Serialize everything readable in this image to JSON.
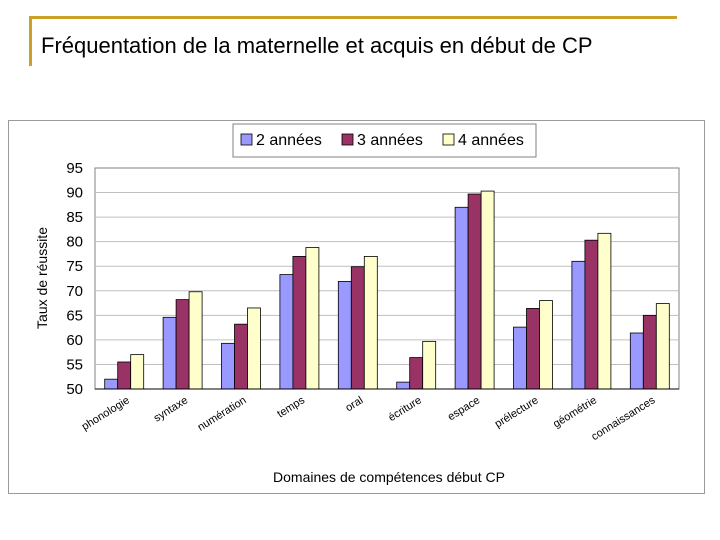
{
  "slide": {
    "title": "Fréquentation de la maternelle et acquis en début de CP"
  },
  "colors": {
    "accent": "#c9a227",
    "series_1": "#9999ff",
    "series_2": "#993366",
    "series_3": "#ffffcc"
  },
  "chart_data": {
    "type": "bar",
    "title": "",
    "xlabel": "Domaines de compétences début CP",
    "ylabel": "Taux de réussite",
    "ylim": [
      50,
      95
    ],
    "yticks": [
      50,
      55,
      60,
      65,
      70,
      75,
      80,
      85,
      90,
      95
    ],
    "grid": true,
    "legend_position": "top",
    "categories": [
      "phonologie",
      "syntaxe",
      "numération",
      "temps",
      "oral",
      "écriture",
      "espace",
      "prélecture",
      "géométrie",
      "connaissances"
    ],
    "series": [
      {
        "name": "2 années",
        "color": "#9999ff",
        "values": [
          52,
          64.6,
          59.3,
          73.3,
          71.9,
          51.4,
          87,
          62.6,
          76,
          61.4
        ]
      },
      {
        "name": "3 années",
        "color": "#993366",
        "values": [
          55.5,
          68.2,
          63.2,
          77,
          74.9,
          56.4,
          89.7,
          66.4,
          80.3,
          65
        ]
      },
      {
        "name": "4 années",
        "color": "#ffffcc",
        "values": [
          57,
          69.8,
          66.5,
          78.8,
          77,
          59.7,
          90.3,
          68,
          81.7,
          67.4
        ]
      }
    ]
  }
}
